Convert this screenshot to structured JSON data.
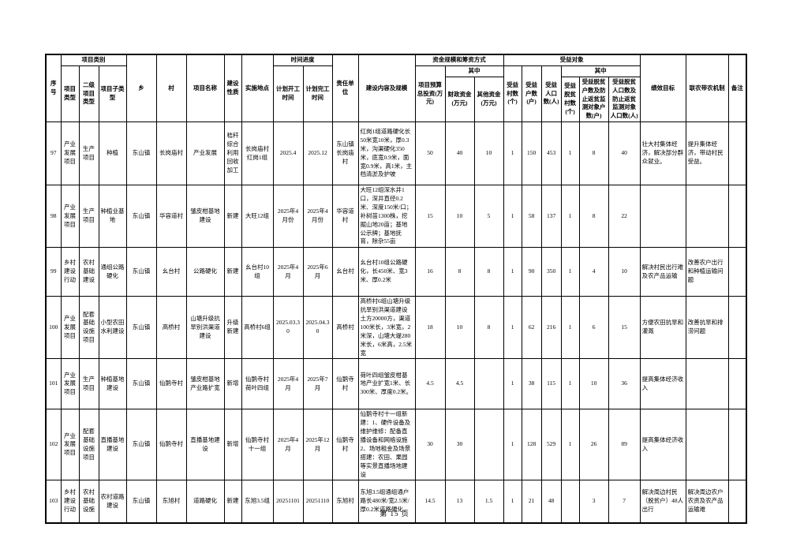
{
  "page": {
    "footer": "第 15 页"
  },
  "table": {
    "headers": {
      "xh": "序号",
      "xmlb": "项目类别",
      "xmlx": "项目类型",
      "ejxmlx": "二级项目类型",
      "xmzlx": "项目子类型",
      "xiang": "乡",
      "cun": "村",
      "xmmc": "项目名称",
      "jsxz": "建设性质",
      "ssdd": "实施地点",
      "sjjd": "时间进度",
      "jhkg": "计划开工时间",
      "jhwg": "计划完工时间",
      "zrdw": "责任单位",
      "jsnr": "建设内容及规模",
      "zjgm": "资金规模和筹资方式",
      "ysztz": "项目预算总投资(万元)",
      "qz1": "其中",
      "czzj": "财政资金(万元)",
      "qtzj": "其他资金(万元)",
      "sydx": "受益对象",
      "sycs": "受益村数(个)",
      "syhs": "受益户数(户)",
      "syrk": "受益人口数(人)",
      "qz2": "其中",
      "tpcs": "受益脱贫村数(个)",
      "tphs": "受益脱贫户数及防止返贫监测对象户数(户)",
      "tprk": "受益脱贫人口数及防止返贫监测对象人口数(人)",
      "jxmb": "绩效目标",
      "lndn": "联农带农机制",
      "bz": "备注"
    },
    "column_keys": [
      "index",
      "project-type",
      "secondary-type",
      "sub-type",
      "township",
      "village",
      "project-name",
      "construction-nature",
      "location",
      "planned-start",
      "planned-finish",
      "responsible-unit",
      "content-scale",
      "total-budget",
      "fiscal-funds",
      "other-funds",
      "benefit-villages",
      "benefit-households",
      "benefit-population",
      "poverty-villages",
      "poverty-households",
      "poverty-population",
      "performance-goal",
      "farmer-linkage",
      "remarks"
    ],
    "left_align_columns": [
      12,
      22,
      23
    ],
    "rows": [
      [
        "97",
        "产业发展项目",
        "生产项目",
        "种植",
        "东山镇",
        "长岗庙村",
        "产业发展",
        "秸秆综合利用回收加工",
        "长岗庙村红岗1组",
        "2025.4",
        "2025.12",
        "东山镇长岗庙村",
        "红岗1组道路硬化长50米宽10米，厚0.3米，沟渠硬化350米，底宽0.9米，面宽0.9米，高1米，主档清淤及护坡",
        "50",
        "40",
        "10",
        "1",
        "150",
        "453",
        "1",
        "8",
        "40",
        "壮大村集体经济，解决部分群众就业。",
        "提升集体经济，带动村民受益。",
        ""
      ],
      [
        "98",
        "产业发展项目",
        "生产项目",
        "种植业基地",
        "东山镇",
        "华容道村",
        "皱皮柑基地建设",
        "新建",
        "大旺12组",
        "2025年4月份",
        "2025年4月份",
        "华容道村",
        "大旺12组深水井1口，深井直径0.2米、深度150米/口；补树苗1300株，挖掘山地20亩；基地公示牌；基地抚育，除杂55亩",
        "15",
        "10",
        "5",
        "1",
        "58",
        "137",
        "1",
        "8",
        "22",
        "",
        "",
        ""
      ],
      [
        "99",
        "乡村建设行动",
        "农村基础建设",
        "通组公路硬化",
        "东山镇",
        "幺台村",
        "公路硬化",
        "新建",
        "幺台村10组",
        "2025年4月",
        "2025年6月",
        "幺台村",
        "幺台村10组公路硬化，长450米、宽3米、厚0.2米",
        "16",
        "8",
        "8",
        "1",
        "90",
        "350",
        "1",
        "4",
        "10",
        "解决村民出行难及农产品运输",
        "改善农户出行和种植运输问题",
        ""
      ],
      [
        "100",
        "产业发展项目",
        "配套基础设施项目",
        "小型农田水利建设",
        "东山镇",
        "高桥村",
        "山塘升级抗旱别洪渠道建设",
        "升级新建",
        "高桥村6组",
        "2025.03.30",
        "2025.04.30",
        "高桥村",
        "高桥村6组山塘升级抗旱别洪渠道建设土方20000方，渠道100米长，3米宽，2米深，山塘大堤280米长，6米高，2.5米宽",
        "18",
        "10",
        "8",
        "1",
        "62",
        "216",
        "1",
        "6",
        "15",
        "方便农田抗旱和灌溉",
        "改善抗旱和排涝问题",
        ""
      ],
      [
        "101",
        "产业发展项目",
        "生产项目",
        "种植基地建设",
        "东山镇",
        "仙鹅寺村",
        "皱皮柑基地产业路扩宽",
        "新增",
        "仙鹅寺村荷叶四组",
        "2025年4月",
        "2025年7月",
        "仙鹅寺村",
        "荷叶四组皱皮柑基地产业扩宽1米、长300米、厚度0.2米。",
        "4.5",
        "4.5",
        "",
        "1",
        "38",
        "115",
        "1",
        "10",
        "36",
        "提高集体经济收入",
        "",
        ""
      ],
      [
        "102",
        "产业发展项目",
        "配套基础设施项目",
        "直播基地建设",
        "东山镇",
        "仙鹅寺村",
        "直播基地建设",
        "新增",
        "仙鹅寺村十一组",
        "2025年4月",
        "2025年12月",
        "仙鹅寺村",
        "仙鹅寺村十一组新建：1、硬件设备及维护维修：配备直播设备和网络设施 2、场地租金及场景搭建：农田、果园等实景直播场地建设",
        "30",
        "30",
        "",
        "1",
        "128",
        "529",
        "1",
        "26",
        "89",
        "提高集体经济收入",
        "",
        ""
      ],
      [
        "103",
        "乡村建设行动",
        "农村基础设施",
        "农村道路建设",
        "东山镇",
        "东旭村",
        "道路硬化",
        "新建",
        "东旭3.5组",
        "20251101",
        "20251110",
        "东旭村",
        "东旭3.5组通组通户路长480米/宽2.5米/厚0.2米道路硬化",
        "14.5",
        "13",
        "1.5",
        "1",
        "21",
        "48",
        "",
        "3",
        "7",
        "解决周边村民（脱贫户）48人出行",
        "解决周边农户农资及农产品运输难",
        ""
      ]
    ]
  }
}
